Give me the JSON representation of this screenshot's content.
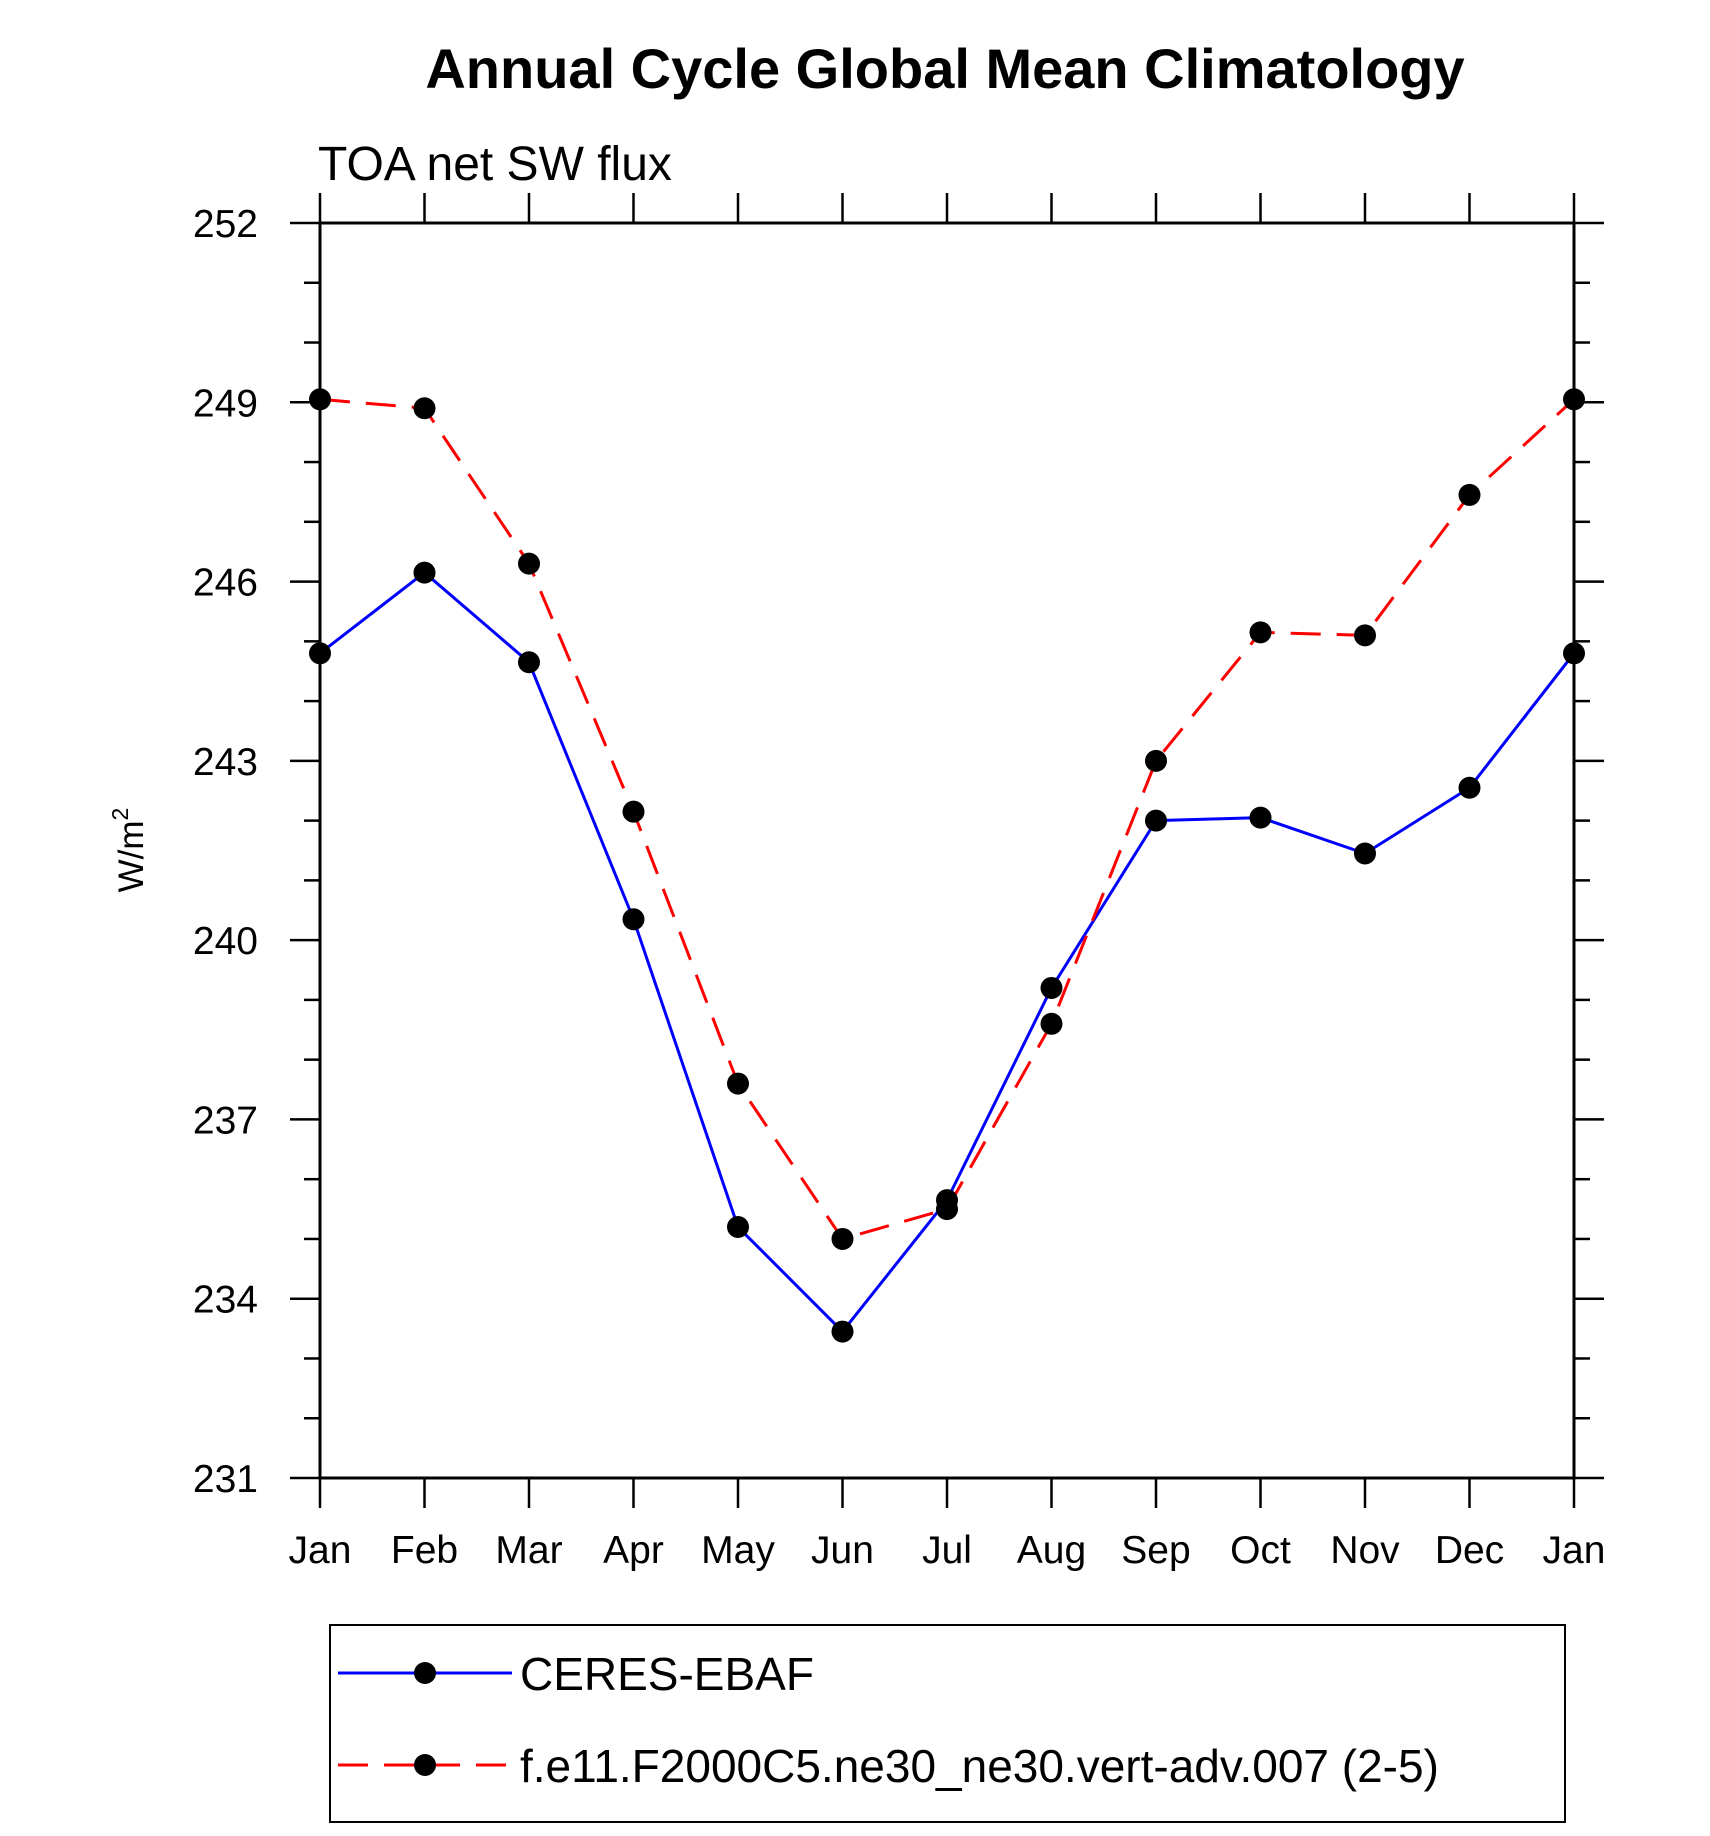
{
  "chart_data": {
    "type": "line",
    "title": "Annual Cycle Global Mean Climatology",
    "subtitle": "TOA net SW flux",
    "ylabel": "W/m",
    "ylabel_superscript": "2",
    "xlabel": "",
    "categories": [
      "Jan",
      "Feb",
      "Mar",
      "Apr",
      "May",
      "Jun",
      "Jul",
      "Aug",
      "Sep",
      "Oct",
      "Nov",
      "Dec",
      "Jan"
    ],
    "ylim": [
      231,
      252
    ],
    "yticks": [
      "252",
      "249",
      "246",
      "243",
      "240",
      "237",
      "234",
      "231"
    ],
    "ytick_values": [
      252,
      249,
      246,
      243,
      240,
      237,
      234,
      231
    ],
    "series": [
      {
        "name": "CERES-EBAF",
        "color": "#0000ff",
        "line_style": "solid",
        "marker": "filled-circle",
        "values": [
          244.8,
          246.15,
          244.65,
          240.35,
          235.2,
          233.45,
          235.65,
          239.2,
          242.0,
          242.05,
          241.45,
          242.55,
          244.8
        ]
      },
      {
        "name": "f.e11.F2000C5.ne30_ne30.vert-adv.007 (2-5)",
        "color": "#ff0000",
        "line_style": "dashed",
        "marker": "filled-circle",
        "values": [
          249.05,
          248.9,
          246.3,
          242.15,
          237.6,
          235.0,
          235.5,
          238.6,
          243.0,
          245.15,
          245.1,
          247.45,
          249.05
        ]
      }
    ],
    "legend_position": "bottom",
    "grid": false
  }
}
